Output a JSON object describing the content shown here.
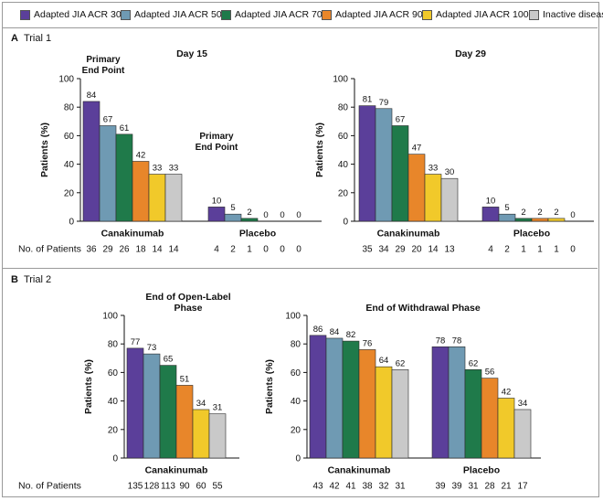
{
  "colors": {
    "acr30": "#5b3f9a",
    "acr50": "#6f9ab3",
    "acr70": "#1f7a4a",
    "acr90": "#e8862a",
    "acr100": "#f1c92a",
    "inactive": "#c9c9c9"
  },
  "legend": {
    "items": [
      {
        "key": "acr30",
        "label": "Adapted JIA ACR 30"
      },
      {
        "key": "acr50",
        "label": "Adapted JIA ACR 50"
      },
      {
        "key": "acr70",
        "label": "Adapted JIA ACR 70"
      },
      {
        "key": "acr90",
        "label": "Adapted JIA ACR 90"
      },
      {
        "key": "acr100",
        "label": "Adapted JIA ACR 100"
      },
      {
        "key": "inactive",
        "label": "Inactive disease"
      }
    ]
  },
  "sections": {
    "trial1": {
      "letter": "A",
      "title": "Trial 1"
    },
    "trial2": {
      "letter": "B",
      "title": "Trial 2"
    }
  },
  "chart_data": [
    {
      "type": "bar",
      "id": "t1d15",
      "title": "Day 15",
      "ylabel": "Patients (%)",
      "ylim": [
        0,
        100
      ],
      "yticks": [
        0,
        20,
        40,
        60,
        80,
        100
      ],
      "series_keys": [
        "acr30",
        "acr50",
        "acr70",
        "acr90",
        "acr100",
        "inactive"
      ],
      "groups": [
        {
          "label": "Canakinumab",
          "values": [
            84,
            67,
            61,
            42,
            33,
            33
          ],
          "n": [
            36,
            29,
            26,
            18,
            14,
            14
          ],
          "annotation": "Primary\nEnd Point"
        },
        {
          "label": "Placebo",
          "values": [
            10,
            5,
            2,
            0,
            0,
            0
          ],
          "n": [
            4,
            2,
            1,
            0,
            0,
            0
          ],
          "annotation": "Primary\nEnd Point"
        }
      ],
      "n_label": "No. of Patients"
    },
    {
      "type": "bar",
      "id": "t1d29",
      "title": "Day 29",
      "ylabel": "Patients (%)",
      "ylim": [
        0,
        100
      ],
      "yticks": [
        0,
        20,
        40,
        60,
        80,
        100
      ],
      "series_keys": [
        "acr30",
        "acr50",
        "acr70",
        "acr90",
        "acr100",
        "inactive"
      ],
      "groups": [
        {
          "label": "Canakinumab",
          "values": [
            81,
            79,
            67,
            47,
            33,
            30
          ],
          "n": [
            35,
            34,
            29,
            20,
            14,
            13
          ]
        },
        {
          "label": "Placebo",
          "values": [
            10,
            5,
            2,
            2,
            2,
            0
          ],
          "n": [
            4,
            2,
            1,
            1,
            1,
            0
          ]
        }
      ]
    },
    {
      "type": "bar",
      "id": "t2ol",
      "title": "End of Open-Label\nPhase",
      "ylabel": "Patients (%)",
      "ylim": [
        0,
        100
      ],
      "yticks": [
        0,
        20,
        40,
        60,
        80,
        100
      ],
      "series_keys": [
        "acr30",
        "acr50",
        "acr70",
        "acr90",
        "acr100",
        "inactive"
      ],
      "groups": [
        {
          "label": "Canakinumab",
          "values": [
            77,
            73,
            65,
            51,
            34,
            31
          ],
          "n": [
            135,
            128,
            113,
            90,
            60,
            55
          ]
        }
      ],
      "n_label": "No. of Patients"
    },
    {
      "type": "bar",
      "id": "t2wd",
      "title": "End of Withdrawal Phase",
      "ylabel": "Patients (%)",
      "ylim": [
        0,
        100
      ],
      "yticks": [
        0,
        20,
        40,
        60,
        80,
        100
      ],
      "series_keys": [
        "acr30",
        "acr50",
        "acr70",
        "acr90",
        "acr100",
        "inactive"
      ],
      "groups": [
        {
          "label": "Canakinumab",
          "values": [
            86,
            84,
            82,
            76,
            64,
            62
          ],
          "n": [
            43,
            42,
            41,
            38,
            32,
            31
          ]
        },
        {
          "label": "Placebo",
          "values": [
            78,
            78,
            62,
            56,
            42,
            34
          ],
          "n": [
            39,
            39,
            31,
            28,
            21,
            17
          ]
        }
      ]
    }
  ]
}
